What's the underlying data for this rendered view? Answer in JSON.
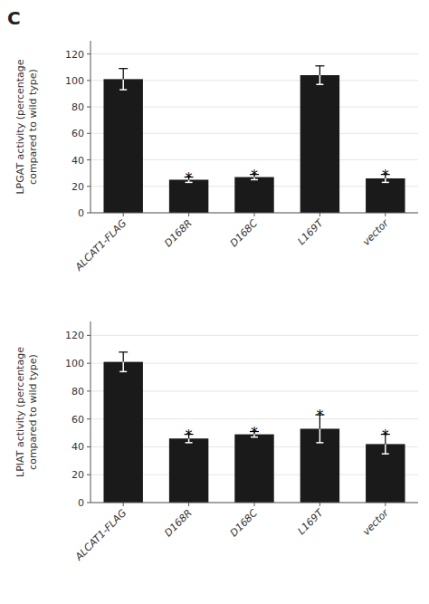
{
  "chart_data": [
    {
      "type": "bar",
      "title": "C",
      "categories": [
        "ALCAT1-FLAG",
        "D168R",
        "D168C",
        "L169T",
        "vector"
      ],
      "values": [
        101,
        25,
        27,
        104,
        26
      ],
      "errors": [
        8,
        2,
        2,
        7,
        3
      ],
      "color": "#1a1a1a",
      "y_label": "LPGAT activity (percentage\ncompared to wild type)",
      "ylim": [
        0,
        130
      ],
      "yticks": [
        0,
        20,
        40,
        60,
        80,
        100,
        120
      ],
      "annotations": [
        {
          "text": "*",
          "category": "D168R"
        },
        {
          "text": "*",
          "category": "D168C"
        },
        {
          "text": "*",
          "category": "vector"
        }
      ]
    },
    {
      "type": "bar",
      "categories": [
        "ALCAT1-FLAG",
        "D168R",
        "D168C",
        "L169T",
        "vector"
      ],
      "values": [
        101,
        46,
        49,
        53,
        42
      ],
      "errors": [
        7,
        3,
        2,
        10,
        7
      ],
      "color": "#1a1a1a",
      "y_label": "LPIAT activity (percentage\ncompared to wild type)",
      "ylim": [
        0,
        130
      ],
      "yticks": [
        0,
        20,
        40,
        60,
        80,
        100,
        120
      ],
      "annotations": [
        {
          "text": "*",
          "category": "D168R"
        },
        {
          "text": "*",
          "category": "D168C"
        },
        {
          "text": "*",
          "category": "L169T"
        },
        {
          "text": "*",
          "category": "vector"
        }
      ]
    }
  ]
}
